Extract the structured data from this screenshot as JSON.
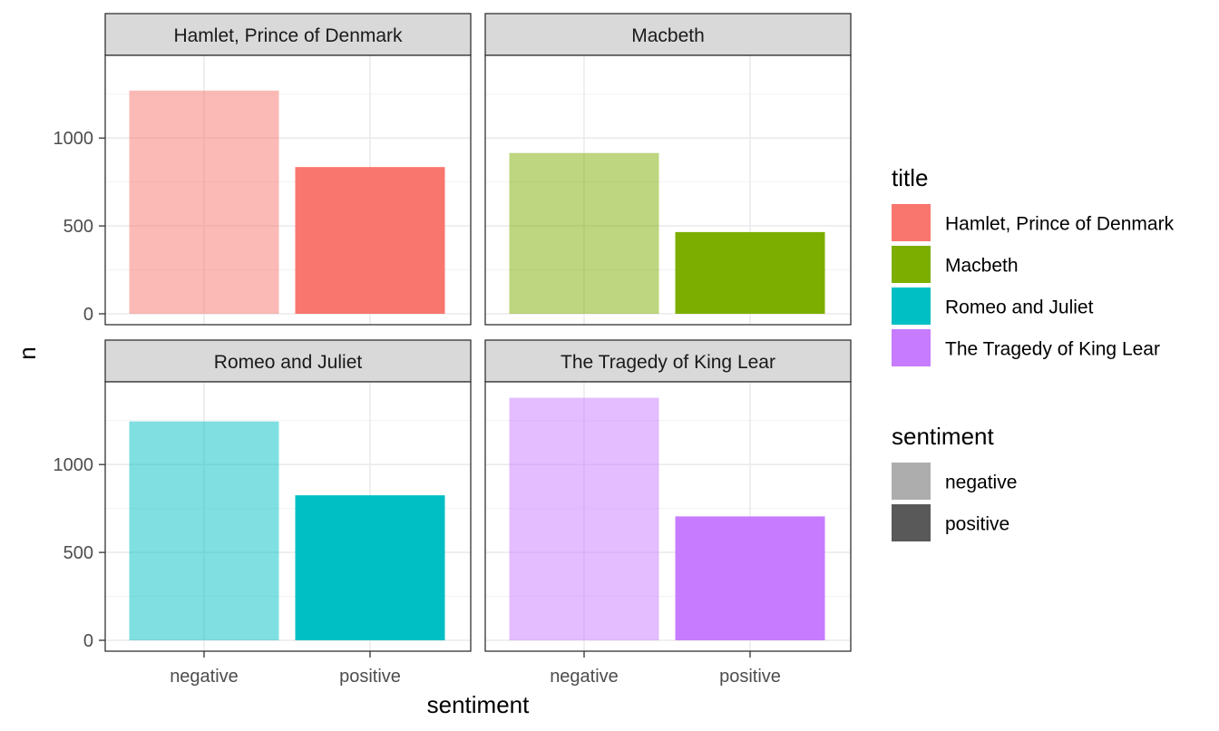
{
  "chart_data": {
    "type": "bar",
    "facet": "title",
    "categories": [
      "negative",
      "positive"
    ],
    "xlabel": "sentiment",
    "ylabel": "n",
    "ylim": [
      0,
      1450
    ],
    "yticks": [
      0,
      500,
      1000
    ],
    "grid": true,
    "panels": [
      {
        "title": "Hamlet, Prince of Denmark",
        "color": "#F8766D",
        "values": [
          1270,
          835
        ]
      },
      {
        "title": "Macbeth",
        "color": "#7CAE00",
        "values": [
          915,
          465
        ]
      },
      {
        "title": "Romeo and Juliet",
        "color": "#00BFC4",
        "values": [
          1245,
          825
        ]
      },
      {
        "title": "The Tragedy of King Lear",
        "color": "#C77CFF",
        "values": [
          1380,
          705
        ]
      }
    ],
    "alpha": {
      "negative": 0.5,
      "positive": 1.0
    },
    "legends": [
      {
        "title": "title",
        "items": [
          {
            "label": "Hamlet, Prince of Denmark",
            "color": "#F8766D"
          },
          {
            "label": "Macbeth",
            "color": "#7CAE00"
          },
          {
            "label": "Romeo and Juliet",
            "color": "#00BFC4"
          },
          {
            "label": "The Tragedy of King Lear",
            "color": "#C77CFF"
          }
        ]
      },
      {
        "title": "sentiment",
        "items": [
          {
            "label": "negative",
            "color": "#ADADAD"
          },
          {
            "label": "positive",
            "color": "#595959"
          }
        ]
      }
    ],
    "legend_position": "right"
  }
}
